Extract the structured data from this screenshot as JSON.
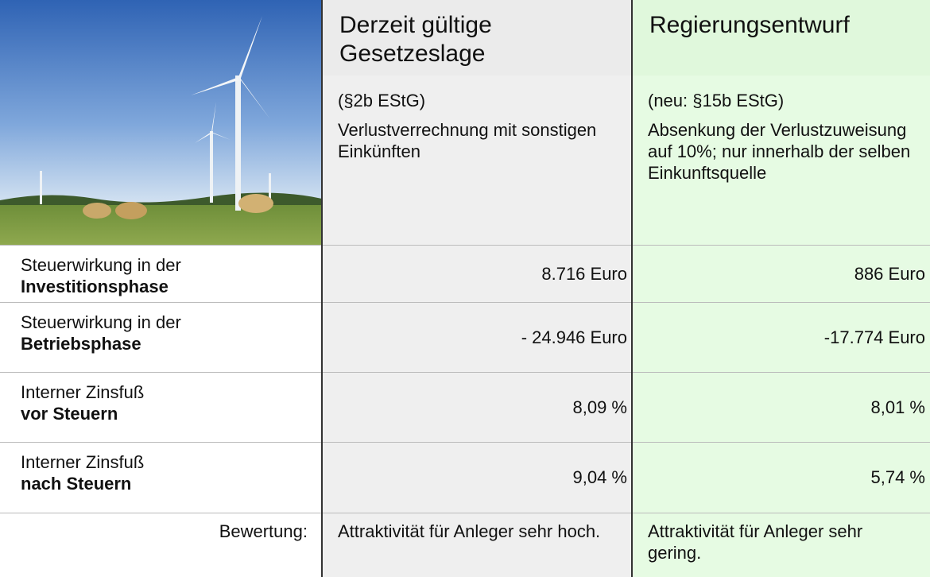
{
  "columns": [
    {
      "title": "Derzeit gültige Gesetzeslage",
      "ref": "(§2b EStG)",
      "desc": "Verlustverrechnung mit sonstigen Einkünften"
    },
    {
      "title": "Regierungsentwurf",
      "ref": "(neu: §15b EStG)",
      "desc": "Absenkung der Verlustzuweisung auf 10%; nur innerhalb der selben Einkunftsquelle"
    }
  ],
  "rows": [
    {
      "label": "Steuerwirkung in der",
      "label_bold": "Investitionsphase",
      "values": [
        "8.716 Euro",
        "886 Euro"
      ]
    },
    {
      "label": "Steuerwirkung in der",
      "label_bold": "Betriebsphase",
      "values": [
        "- 24.946 Euro",
        "-17.774 Euro"
      ]
    },
    {
      "label": "Interner Zinsfuß",
      "label_bold": "vor Steuern",
      "values": [
        "8,09 %",
        "8,01 %"
      ]
    },
    {
      "label": "Interner Zinsfuß",
      "label_bold": "nach Steuern",
      "values": [
        "9,04 %",
        "5,74 %"
      ]
    }
  ],
  "footer": {
    "label": "Bewertung:",
    "values": [
      "Attraktivität für Anleger sehr hoch.",
      "Attraktivität für Anleger sehr gering."
    ]
  }
}
